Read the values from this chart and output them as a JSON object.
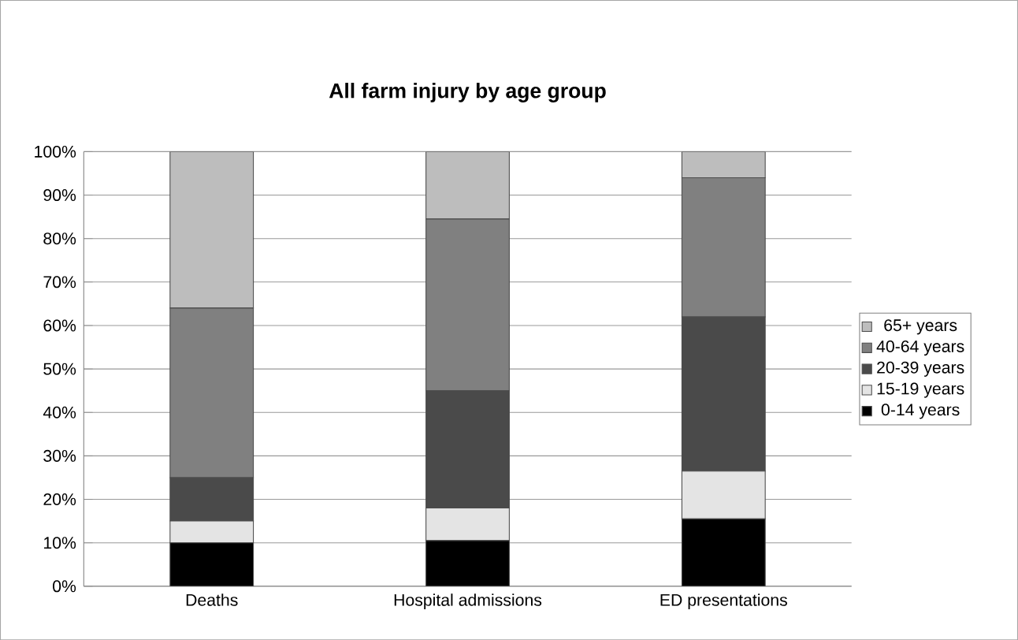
{
  "chart_data": {
    "type": "bar",
    "title": "All farm injury by age group",
    "categories": [
      "Deaths",
      "Hospital admissions",
      "ED presentations"
    ],
    "stacked": true,
    "series": [
      {
        "name": "0-14 years",
        "color": "#000000",
        "values": [
          10,
          10.5,
          15.5
        ]
      },
      {
        "name": "15-19 years",
        "color": "#e4e4e4",
        "values": [
          5,
          7.5,
          11
        ]
      },
      {
        "name": "20-39 years",
        "color": "#4a4a4a",
        "values": [
          10,
          27,
          35.5
        ]
      },
      {
        "name": "40-64 years",
        "color": "#808080",
        "values": [
          39,
          39.5,
          32
        ]
      },
      {
        "name": "65+ years",
        "color": "#bdbdbd",
        "values": [
          36,
          15.5,
          6
        ]
      }
    ],
    "ylim": [
      0,
      100
    ],
    "yticks": [
      {
        "value": 0,
        "label": "0%"
      },
      {
        "value": 10,
        "label": "10%"
      },
      {
        "value": 20,
        "label": "20%"
      },
      {
        "value": 30,
        "label": "30%"
      },
      {
        "value": 40,
        "label": "40%"
      },
      {
        "value": 50,
        "label": "50%"
      },
      {
        "value": 60,
        "label": "60%"
      },
      {
        "value": 70,
        "label": "70%"
      },
      {
        "value": 80,
        "label": "80%"
      },
      {
        "value": 90,
        "label": "90%"
      },
      {
        "value": 100,
        "label": "100%"
      }
    ],
    "grid": "y",
    "legend": "right"
  }
}
